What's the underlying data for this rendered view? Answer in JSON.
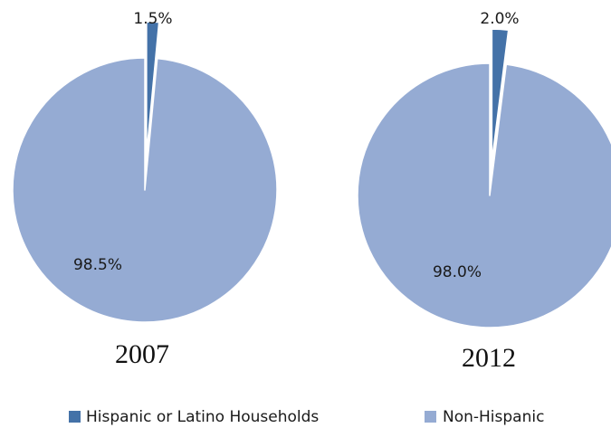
{
  "chart_data": [
    {
      "type": "pie",
      "title": "2007",
      "categories": [
        "Hispanic or Latino Households",
        "Non-Hispanic"
      ],
      "values": [
        1.5,
        98.5
      ],
      "data_labels": [
        "1.5%",
        "98.5%"
      ],
      "exploded_slice": "Hispanic or Latino Households"
    },
    {
      "type": "pie",
      "title": "2012",
      "categories": [
        "Hispanic or Latino Households",
        "Non-Hispanic"
      ],
      "values": [
        2.0,
        98.0
      ],
      "data_labels": [
        "2.0%",
        "98.0%"
      ],
      "exploded_slice": "Hispanic or Latino Households"
    }
  ],
  "legend": {
    "position": "bottom",
    "items": [
      {
        "label": "Hispanic or Latino Households",
        "color": "#4472a8"
      },
      {
        "label": "Non-Hispanic",
        "color": "#95abd3"
      }
    ]
  },
  "colors": {
    "hispanic": "#4472a8",
    "non_hispanic": "#95abd3",
    "background": "#ffffff"
  }
}
